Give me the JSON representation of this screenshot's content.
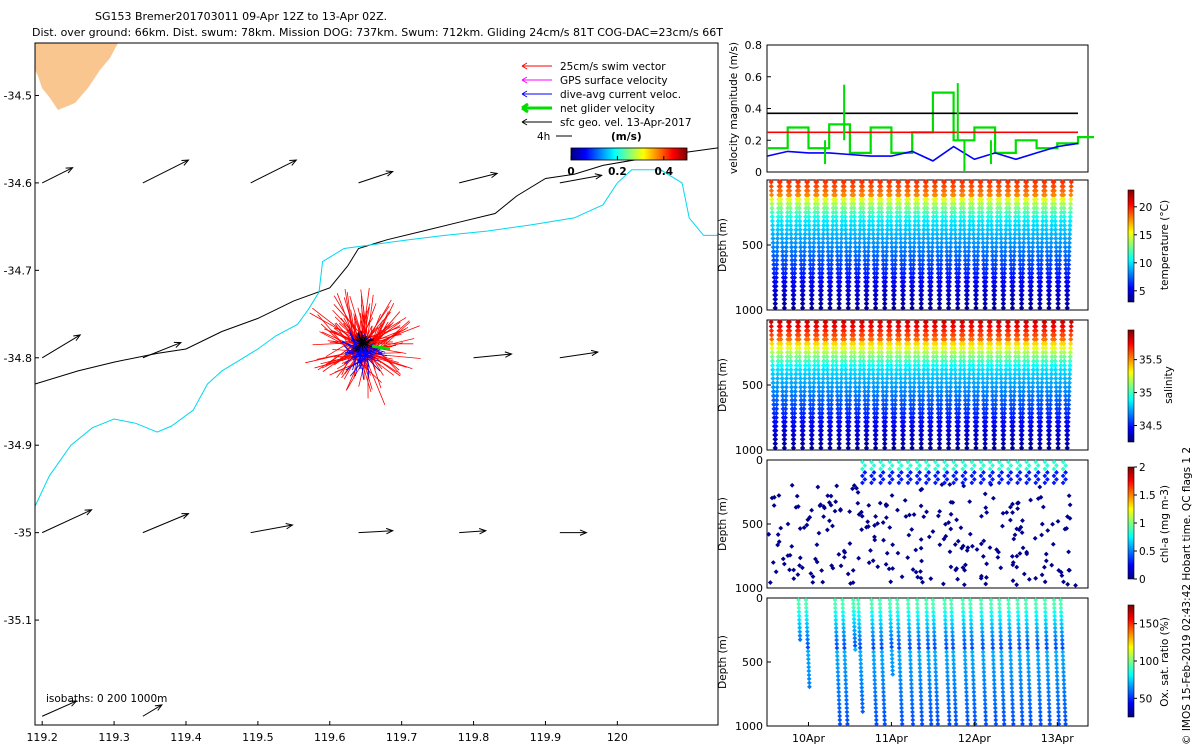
{
  "header": {
    "line1": "SG153 Bremer201703011 09-Apr 12Z to 13-Apr 02Z.",
    "line2": "Dist. over ground: 66km. Dist. swum: 78km. Mission DOG: 737km. Swum: 712km. Gliding 24cm/s 81T COG-DAC=23cm/s 66T"
  },
  "colors": {
    "land": "#f9c68f",
    "isobath200": "#000000",
    "isobath1000": "#00d8f0",
    "swim": "#ff0000",
    "gps": "#ff00ff",
    "dac": "#0000ff",
    "net": "#00dd00",
    "geo": "#000000"
  },
  "chart_data": [
    {
      "type": "map",
      "name": "glider track map",
      "xlim": [
        119.19,
        120.14
      ],
      "ylim": [
        -35.22,
        -34.44
      ],
      "xticks": [
        119.2,
        119.3,
        119.4,
        119.5,
        119.6,
        119.7,
        119.8,
        119.9,
        120
      ],
      "xtick_labels": [
        "119.2",
        "119.3",
        "119.4",
        "119.5",
        "119.6",
        "119.7",
        "119.8",
        "119.9",
        "120"
      ],
      "yticks": [
        -34.5,
        -34.6,
        -34.7,
        -34.8,
        -34.9,
        -35,
        -35.1
      ],
      "ytick_labels": [
        "-34.5",
        "-34.6",
        "-34.7",
        "-34.8",
        "-34.9",
        "-35",
        "-35.1"
      ],
      "legend": [
        {
          "label": "25cm/s swim vector",
          "key": "swim"
        },
        {
          "label": "GPS surface velocity",
          "key": "gps"
        },
        {
          "label": "dive-avg current veloc.",
          "key": "dac"
        },
        {
          "label": "net glider velocity",
          "key": "net"
        },
        {
          "label": "sfc geo. vel. 13-Apr-2017",
          "key": "geo"
        }
      ],
      "scale_label": "4h",
      "colorbar": {
        "title": "(m/s)",
        "min": 0,
        "max": 0.5,
        "tick_values": [
          0,
          0.2,
          0.4
        ],
        "tick_labels": [
          "0",
          "0.2",
          "0.4"
        ]
      },
      "isobath_note": "isobaths: 0   200   1000m",
      "isobath_200m": [
        [
          119.19,
          -34.83
        ],
        [
          119.25,
          -34.815
        ],
        [
          119.3,
          -34.805
        ],
        [
          119.36,
          -34.795
        ],
        [
          119.4,
          -34.79
        ],
        [
          119.45,
          -34.77
        ],
        [
          119.5,
          -34.755
        ],
        [
          119.55,
          -34.735
        ],
        [
          119.6,
          -34.72
        ],
        [
          119.625,
          -34.695
        ],
        [
          119.64,
          -34.675
        ],
        [
          119.68,
          -34.665
        ],
        [
          119.73,
          -34.655
        ],
        [
          119.78,
          -34.645
        ],
        [
          119.83,
          -34.635
        ],
        [
          119.86,
          -34.615
        ],
        [
          119.9,
          -34.595
        ],
        [
          119.94,
          -34.59
        ],
        [
          119.98,
          -34.58
        ],
        [
          120.05,
          -34.57
        ],
        [
          120.14,
          -34.56
        ]
      ],
      "isobath_1000m": [
        [
          119.19,
          -34.97
        ],
        [
          119.21,
          -34.935
        ],
        [
          119.24,
          -34.9
        ],
        [
          119.27,
          -34.88
        ],
        [
          119.3,
          -34.87
        ],
        [
          119.33,
          -34.875
        ],
        [
          119.36,
          -34.885
        ],
        [
          119.38,
          -34.878
        ],
        [
          119.41,
          -34.86
        ],
        [
          119.43,
          -34.83
        ],
        [
          119.45,
          -34.815
        ],
        [
          119.48,
          -34.8
        ],
        [
          119.5,
          -34.79
        ],
        [
          119.525,
          -34.775
        ],
        [
          119.555,
          -34.762
        ],
        [
          119.57,
          -34.745
        ],
        [
          119.585,
          -34.725
        ],
        [
          119.59,
          -34.69
        ],
        [
          119.62,
          -34.675
        ],
        [
          119.665,
          -34.67
        ],
        [
          119.71,
          -34.665
        ],
        [
          119.76,
          -34.66
        ],
        [
          119.82,
          -34.655
        ],
        [
          119.88,
          -34.648
        ],
        [
          119.94,
          -34.64
        ],
        [
          119.98,
          -34.625
        ],
        [
          120.0,
          -34.6
        ],
        [
          120.02,
          -34.585
        ],
        [
          120.06,
          -34.585
        ],
        [
          120.09,
          -34.6
        ],
        [
          120.1,
          -34.64
        ],
        [
          120.12,
          -34.66
        ],
        [
          120.14,
          -34.66
        ]
      ],
      "geo_vectors": [
        {
          "lon": 119.2,
          "lat": -34.6,
          "u": 0.08,
          "v": 0.04
        },
        {
          "lon": 119.34,
          "lat": -34.6,
          "u": 0.12,
          "v": 0.06
        },
        {
          "lon": 119.49,
          "lat": -34.6,
          "u": 0.12,
          "v": 0.06
        },
        {
          "lon": 119.64,
          "lat": -34.6,
          "u": 0.09,
          "v": 0.03
        },
        {
          "lon": 119.78,
          "lat": -34.6,
          "u": 0.1,
          "v": 0.025
        },
        {
          "lon": 119.92,
          "lat": -34.6,
          "u": 0.11,
          "v": 0.02
        },
        {
          "lon": 119.2,
          "lat": -34.8,
          "u": 0.1,
          "v": 0.06
        },
        {
          "lon": 119.34,
          "lat": -34.8,
          "u": 0.1,
          "v": 0.04
        },
        {
          "lon": 119.8,
          "lat": -34.8,
          "u": 0.1,
          "v": 0.01
        },
        {
          "lon": 119.92,
          "lat": -34.8,
          "u": 0.1,
          "v": 0.015
        },
        {
          "lon": 119.2,
          "lat": -35.0,
          "u": 0.13,
          "v": 0.06
        },
        {
          "lon": 119.34,
          "lat": -35.0,
          "u": 0.12,
          "v": 0.05
        },
        {
          "lon": 119.49,
          "lat": -35.0,
          "u": 0.11,
          "v": 0.02
        },
        {
          "lon": 119.64,
          "lat": -35.0,
          "u": 0.09,
          "v": 0.005
        },
        {
          "lon": 119.78,
          "lat": -35.0,
          "u": 0.07,
          "v": 0.005
        },
        {
          "lon": 119.92,
          "lat": -35.0,
          "u": 0.07,
          "v": 0.0
        },
        {
          "lon": 119.2,
          "lat": -35.21,
          "u": 0.09,
          "v": 0.04
        },
        {
          "lon": 119.34,
          "lat": -35.21,
          "u": 0.05,
          "v": 0.03
        }
      ],
      "glider_cluster_center": {
        "lon": 119.645,
        "lat": -34.79
      }
    },
    {
      "type": "line",
      "name": "velocity magnitude",
      "ylabel": "velocity magnitude (m/s)",
      "ylim": [
        0,
        0.8
      ],
      "yticks": [
        0,
        0.2,
        0.4,
        0.6,
        0.8
      ],
      "ytick_labels": [
        "0",
        "0.2",
        "0.4",
        "0.6",
        "0.8"
      ],
      "x": [
        9.5,
        9.75,
        10.0,
        10.25,
        10.5,
        10.75,
        11.0,
        11.25,
        11.5,
        11.75,
        12.0,
        12.25,
        12.5,
        12.75,
        13.0,
        13.25
      ],
      "series": [
        {
          "name": "net glider velocity",
          "key": "net",
          "values": [
            0.15,
            0.28,
            0.15,
            0.3,
            0.12,
            0.28,
            0.12,
            0.25,
            0.5,
            0.2,
            0.28,
            0.12,
            0.2,
            0.15,
            0.18,
            0.22
          ]
        },
        {
          "name": "dive-avg current veloc.",
          "key": "dac",
          "values": [
            0.1,
            0.13,
            0.12,
            0.12,
            0.11,
            0.1,
            0.1,
            0.13,
            0.07,
            0.16,
            0.08,
            0.12,
            0.08,
            0.12,
            0.16,
            0.18
          ]
        },
        {
          "name": "25cm/s swim vector",
          "key": "swim",
          "values": [
            0.25,
            0.25,
            0.25,
            0.25,
            0.25,
            0.25,
            0.25,
            0.25,
            0.25,
            0.25,
            0.25,
            0.25,
            0.25,
            0.25,
            0.25,
            0.25
          ]
        },
        {
          "name": "sfc geo. vel.",
          "key": "geo",
          "values": [
            0.37,
            0.37,
            0.37,
            0.37,
            0.37,
            0.37,
            0.37,
            0.37,
            0.37,
            0.37,
            0.37,
            0.37,
            0.37,
            0.37,
            0.37,
            0.37
          ]
        }
      ]
    },
    {
      "type": "scatter",
      "name": "temperature section",
      "ylabel": "Depth (m)",
      "ylim": [
        1000,
        0
      ],
      "yticks": [
        500,
        1000
      ],
      "ytick_labels": [
        "500",
        "1000"
      ],
      "colorbar": {
        "label": "temperature (°C)",
        "min": 3,
        "max": 23,
        "tick_values": [
          5,
          10,
          15,
          20
        ],
        "tick_labels": [
          "5",
          "10",
          "15",
          "20"
        ]
      },
      "profile_days": [
        9.55,
        9.66,
        9.77,
        9.88,
        9.99,
        10.1,
        10.21,
        10.32,
        10.43,
        10.54,
        10.65,
        10.76,
        10.87,
        10.98,
        11.09,
        11.2,
        11.31,
        11.42,
        11.53,
        11.64,
        11.75,
        11.86,
        11.97,
        12.08,
        12.19,
        12.3,
        12.41,
        12.52,
        12.63,
        12.74,
        12.85,
        12.96,
        13.07
      ],
      "max_depth": 1000
    },
    {
      "type": "scatter",
      "name": "salinity section",
      "ylabel": "Depth (m)",
      "ylim": [
        1000,
        0
      ],
      "yticks": [
        500,
        1000
      ],
      "ytick_labels": [
        "500",
        "1000"
      ],
      "colorbar": {
        "label": "salinity",
        "min": 34.25,
        "max": 35.95,
        "tick_values": [
          34.5,
          35,
          35.5
        ],
        "tick_labels": [
          "34.5",
          "35",
          "35.5"
        ]
      },
      "max_depth": 1000
    },
    {
      "type": "scatter",
      "name": "chlorophyll section",
      "ylabel": "Depth (m)",
      "ylim": [
        1000,
        0
      ],
      "yticks": [
        0,
        500,
        1000
      ],
      "ytick_labels": [
        "0",
        "500",
        "1000"
      ],
      "colorbar": {
        "label": "chl-a (mg m-3)",
        "min": 0,
        "max": 2,
        "tick_values": [
          0,
          0.5,
          1,
          1.5,
          2
        ],
        "tick_labels": [
          "0",
          "0.5",
          "1",
          "1.5",
          "2"
        ]
      }
    },
    {
      "type": "scatter",
      "name": "oxygen section",
      "ylabel": "Depth (m)",
      "ylim": [
        1000,
        0
      ],
      "yticks": [
        0,
        500,
        1000
      ],
      "ytick_labels": [
        "0",
        "500",
        "1000"
      ],
      "xtick_days": [
        10,
        11,
        12,
        13
      ],
      "xtick_labels": [
        "10Apr",
        "11Apr",
        "12Apr",
        "13Apr"
      ],
      "colorbar": {
        "label": "Ox. sat. ratio (%)",
        "min": 25,
        "max": 175,
        "tick_values": [
          50,
          100,
          150
        ],
        "tick_labels": [
          "50",
          "100",
          "150"
        ]
      },
      "profile_days": [
        9.88,
        9.97,
        10.32,
        10.41,
        10.54,
        10.6,
        10.76,
        10.86,
        10.98,
        11.07,
        11.2,
        11.31,
        11.42,
        11.5,
        11.64,
        11.72,
        11.86,
        11.95,
        12.08,
        12.2,
        12.3,
        12.41,
        12.52,
        12.62,
        12.74,
        12.85,
        12.96,
        13.04
      ],
      "profile_max_depth": [
        320,
        700,
        1000,
        1000,
        400,
        900,
        1000,
        1000,
        600,
        1000,
        1000,
        1000,
        1000,
        1000,
        1000,
        1000,
        1000,
        1000,
        1000,
        1000,
        1000,
        1000,
        1000,
        1000,
        1000,
        1000,
        1000,
        1000
      ]
    }
  ],
  "footer": {
    "credit": "© IMOS 15-Feb-2019 02:43:42 Hobart time. QC flags 1  2"
  }
}
